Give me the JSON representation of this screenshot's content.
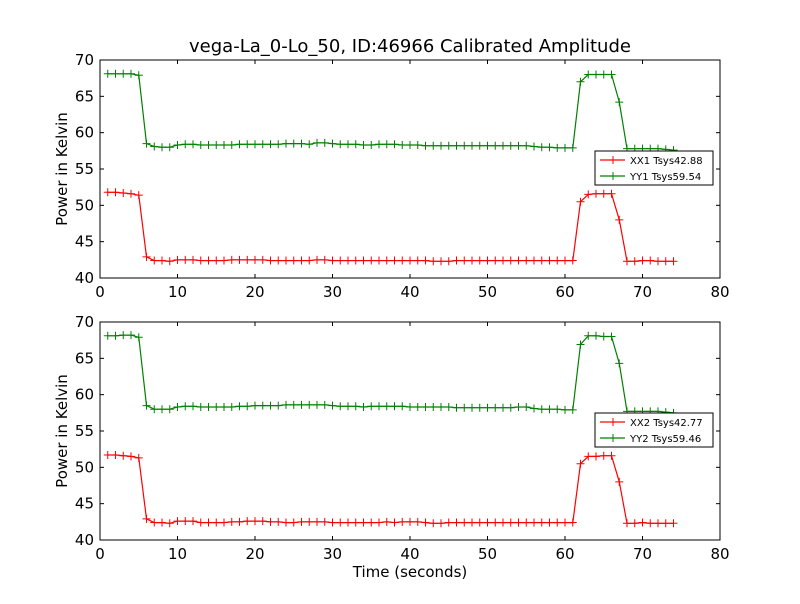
{
  "title": "vega-La_0-Lo_50, ID:46966 Calibrated Amplitude",
  "colors": {
    "red": "#ff0000",
    "green": "#008000"
  },
  "chart_data": [
    {
      "type": "line",
      "ylabel": "Power in Kelvin",
      "xlabel": "",
      "xlim": [
        0,
        80
      ],
      "ylim": [
        40,
        70
      ],
      "xticks": [
        "0",
        "10",
        "20",
        "30",
        "40",
        "50",
        "60",
        "70",
        "80"
      ],
      "yticks": [
        "40",
        "45",
        "50",
        "55",
        "60",
        "65",
        "70"
      ],
      "grid": false,
      "legend_position": "center-right",
      "series": [
        {
          "name": "XX1 Tsys42.88",
          "color": "#ff0000",
          "x": [
            1,
            2,
            3,
            4,
            5,
            6,
            7,
            8,
            9,
            10,
            11,
            12,
            13,
            14,
            15,
            16,
            17,
            18,
            19,
            20,
            21,
            22,
            23,
            24,
            25,
            26,
            27,
            28,
            29,
            30,
            31,
            32,
            33,
            34,
            35,
            36,
            37,
            38,
            39,
            40,
            41,
            42,
            43,
            44,
            45,
            46,
            47,
            48,
            49,
            50,
            51,
            52,
            53,
            54,
            55,
            56,
            57,
            58,
            59,
            60,
            61,
            62,
            63,
            64,
            65,
            66,
            67,
            68,
            69,
            70,
            71,
            72,
            73,
            74
          ],
          "y": [
            51.8,
            51.8,
            51.7,
            51.6,
            51.4,
            42.9,
            42.4,
            42.4,
            42.3,
            42.5,
            42.5,
            42.5,
            42.4,
            42.4,
            42.4,
            42.4,
            42.5,
            42.5,
            42.5,
            42.5,
            42.5,
            42.4,
            42.4,
            42.4,
            42.4,
            42.4,
            42.4,
            42.5,
            42.5,
            42.4,
            42.4,
            42.4,
            42.4,
            42.4,
            42.4,
            42.4,
            42.4,
            42.4,
            42.4,
            42.4,
            42.4,
            42.4,
            42.3,
            42.3,
            42.3,
            42.4,
            42.4,
            42.4,
            42.4,
            42.4,
            42.4,
            42.4,
            42.4,
            42.4,
            42.4,
            42.4,
            42.4,
            42.4,
            42.4,
            42.4,
            42.4,
            50.5,
            51.5,
            51.6,
            51.6,
            51.6,
            48.0,
            42.3,
            42.3,
            42.4,
            42.4,
            42.3,
            42.3,
            42.3
          ]
        },
        {
          "name": "YY1 Tsys59.54",
          "color": "#008000",
          "x": [
            1,
            2,
            3,
            4,
            5,
            6,
            7,
            8,
            9,
            10,
            11,
            12,
            13,
            14,
            15,
            16,
            17,
            18,
            19,
            20,
            21,
            22,
            23,
            24,
            25,
            26,
            27,
            28,
            29,
            30,
            31,
            32,
            33,
            34,
            35,
            36,
            37,
            38,
            39,
            40,
            41,
            42,
            43,
            44,
            45,
            46,
            47,
            48,
            49,
            50,
            51,
            52,
            53,
            54,
            55,
            56,
            57,
            58,
            59,
            60,
            61,
            62,
            63,
            64,
            65,
            66,
            67,
            68,
            69,
            70,
            71,
            72,
            73,
            74
          ],
          "y": [
            68.1,
            68.1,
            68.1,
            68.1,
            67.9,
            58.5,
            58.1,
            58.0,
            58.0,
            58.3,
            58.4,
            58.4,
            58.3,
            58.3,
            58.3,
            58.3,
            58.3,
            58.4,
            58.4,
            58.4,
            58.4,
            58.4,
            58.4,
            58.5,
            58.5,
            58.5,
            58.4,
            58.6,
            58.6,
            58.5,
            58.4,
            58.4,
            58.4,
            58.3,
            58.3,
            58.4,
            58.4,
            58.4,
            58.3,
            58.3,
            58.3,
            58.2,
            58.2,
            58.2,
            58.2,
            58.2,
            58.2,
            58.2,
            58.2,
            58.2,
            58.2,
            58.2,
            58.2,
            58.2,
            58.2,
            58.1,
            58.0,
            58.0,
            57.9,
            57.9,
            57.9,
            67.0,
            68.0,
            68.0,
            68.0,
            68.0,
            64.2,
            57.8,
            57.8,
            57.8,
            57.8,
            57.8,
            57.7,
            57.6
          ]
        }
      ]
    },
    {
      "type": "line",
      "ylabel": "Power in Kelvin",
      "xlabel": "Time (seconds)",
      "xlim": [
        0,
        80
      ],
      "ylim": [
        40,
        70
      ],
      "xticks": [
        "0",
        "10",
        "20",
        "30",
        "40",
        "50",
        "60",
        "70",
        "80"
      ],
      "yticks": [
        "40",
        "45",
        "50",
        "55",
        "60",
        "65",
        "70"
      ],
      "grid": false,
      "legend_position": "center-right",
      "series": [
        {
          "name": "XX2 Tsys42.77",
          "color": "#ff0000",
          "x": [
            1,
            2,
            3,
            4,
            5,
            6,
            7,
            8,
            9,
            10,
            11,
            12,
            13,
            14,
            15,
            16,
            17,
            18,
            19,
            20,
            21,
            22,
            23,
            24,
            25,
            26,
            27,
            28,
            29,
            30,
            31,
            32,
            33,
            34,
            35,
            36,
            37,
            38,
            39,
            40,
            41,
            42,
            43,
            44,
            45,
            46,
            47,
            48,
            49,
            50,
            51,
            52,
            53,
            54,
            55,
            56,
            57,
            58,
            59,
            60,
            61,
            62,
            63,
            64,
            65,
            66,
            67,
            68,
            69,
            70,
            71,
            72,
            73,
            74
          ],
          "y": [
            51.7,
            51.7,
            51.6,
            51.5,
            51.3,
            42.9,
            42.4,
            42.4,
            42.3,
            42.6,
            42.6,
            42.6,
            42.4,
            42.4,
            42.4,
            42.4,
            42.5,
            42.5,
            42.6,
            42.6,
            42.6,
            42.5,
            42.5,
            42.4,
            42.4,
            42.5,
            42.5,
            42.5,
            42.5,
            42.4,
            42.4,
            42.4,
            42.4,
            42.4,
            42.4,
            42.4,
            42.5,
            42.4,
            42.5,
            42.5,
            42.5,
            42.4,
            42.3,
            42.3,
            42.4,
            42.4,
            42.4,
            42.4,
            42.4,
            42.4,
            42.4,
            42.4,
            42.4,
            42.4,
            42.4,
            42.4,
            42.4,
            42.4,
            42.4,
            42.4,
            42.4,
            50.5,
            51.5,
            51.5,
            51.6,
            51.6,
            48.0,
            42.3,
            42.3,
            42.4,
            42.3,
            42.3,
            42.3,
            42.3
          ]
        },
        {
          "name": "YY2 Tsys59.46",
          "color": "#008000",
          "x": [
            1,
            2,
            3,
            4,
            5,
            6,
            7,
            8,
            9,
            10,
            11,
            12,
            13,
            14,
            15,
            16,
            17,
            18,
            19,
            20,
            21,
            22,
            23,
            24,
            25,
            26,
            27,
            28,
            29,
            30,
            31,
            32,
            33,
            34,
            35,
            36,
            37,
            38,
            39,
            40,
            41,
            42,
            43,
            44,
            45,
            46,
            47,
            48,
            49,
            50,
            51,
            52,
            53,
            54,
            55,
            56,
            57,
            58,
            59,
            60,
            61,
            62,
            63,
            64,
            65,
            66,
            67,
            68,
            69,
            70,
            71,
            72,
            73,
            74
          ],
          "y": [
            68.1,
            68.1,
            68.2,
            68.2,
            67.9,
            58.5,
            58.0,
            58.0,
            58.0,
            58.3,
            58.4,
            58.4,
            58.3,
            58.3,
            58.3,
            58.3,
            58.3,
            58.4,
            58.4,
            58.5,
            58.5,
            58.5,
            58.5,
            58.6,
            58.6,
            58.6,
            58.6,
            58.6,
            58.6,
            58.5,
            58.4,
            58.4,
            58.4,
            58.3,
            58.4,
            58.4,
            58.4,
            58.4,
            58.4,
            58.3,
            58.3,
            58.3,
            58.3,
            58.3,
            58.3,
            58.2,
            58.2,
            58.2,
            58.2,
            58.2,
            58.2,
            58.2,
            58.2,
            58.3,
            58.3,
            58.1,
            58.0,
            58.0,
            58.0,
            57.9,
            57.9,
            66.9,
            68.1,
            68.1,
            68.0,
            68.0,
            64.3,
            57.7,
            57.7,
            57.7,
            57.7,
            57.7,
            57.6,
            57.5
          ]
        }
      ]
    }
  ]
}
